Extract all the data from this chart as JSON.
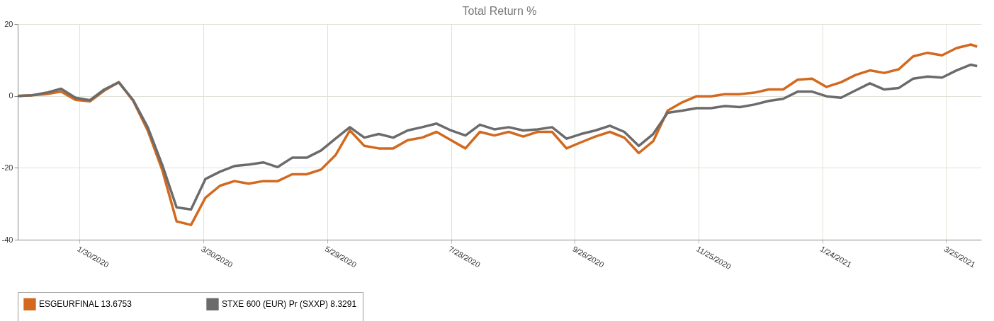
{
  "chart_data": {
    "type": "line",
    "title": "Total Return %",
    "x": [
      "2019-12-31",
      "2020-01-07",
      "2020-01-14",
      "2020-01-21",
      "2020-01-28",
      "2020-02-04",
      "2020-02-11",
      "2020-02-18",
      "2020-02-25",
      "2020-03-03",
      "2020-03-10",
      "2020-03-17",
      "2020-03-24",
      "2020-03-31",
      "2020-04-07",
      "2020-04-14",
      "2020-04-21",
      "2020-04-28",
      "2020-05-05",
      "2020-05-12",
      "2020-05-19",
      "2020-05-26",
      "2020-06-02",
      "2020-06-09",
      "2020-06-16",
      "2020-06-23",
      "2020-06-30",
      "2020-07-07",
      "2020-07-14",
      "2020-07-21",
      "2020-07-28",
      "2020-08-04",
      "2020-08-11",
      "2020-08-18",
      "2020-08-25",
      "2020-09-01",
      "2020-09-08",
      "2020-09-15",
      "2020-09-22",
      "2020-09-29",
      "2020-10-06",
      "2020-10-13",
      "2020-10-20",
      "2020-10-27",
      "2020-11-03",
      "2020-11-10",
      "2020-11-17",
      "2020-11-24",
      "2020-12-01",
      "2020-12-08",
      "2020-12-15",
      "2020-12-22",
      "2020-12-29",
      "2021-01-05",
      "2021-01-12",
      "2021-01-19",
      "2021-01-26",
      "2021-02-02",
      "2021-02-09",
      "2021-02-16",
      "2021-02-23",
      "2021-03-02",
      "2021-03-09",
      "2021-03-16",
      "2021-03-23",
      "2021-03-30",
      "2021-04-06",
      "2021-04-09"
    ],
    "series": [
      {
        "name": "ESGEURFINAL 13.6753",
        "color": "#d2691e",
        "values": [
          0,
          0.2,
          0.5,
          1.2,
          -1.1,
          -1.5,
          1.5,
          3.8,
          -1.4,
          -9.6,
          -20.5,
          -34.9,
          -35.9,
          -28.3,
          -25,
          -23.7,
          -24.4,
          -23.7,
          -23.7,
          -21.8,
          -21.8,
          -20.5,
          -16.5,
          -9.6,
          -13.9,
          -14.6,
          -14.6,
          -12.3,
          -11.6,
          -10,
          -12.3,
          -14.6,
          -10,
          -11,
          -10,
          -11.3,
          -10,
          -10,
          -14.6,
          -12.9,
          -11.3,
          -10,
          -11.6,
          -15.9,
          -12.6,
          -4.1,
          -1.8,
          -0.1,
          -0.1,
          0.5,
          0.5,
          0.9,
          1.8,
          1.8,
          4.5,
          4.8,
          2.5,
          3.8,
          5.8,
          7.1,
          6.4,
          7.4,
          11,
          12,
          11.3,
          13.3,
          14.3,
          13.7
        ]
      },
      {
        "name": "STXE 600 (EUR) Pr (SXXP) 8.3291",
        "color": "#6b6b6b",
        "values": [
          0,
          0.2,
          0.9,
          2,
          -0.5,
          -1.2,
          1.8,
          3.8,
          -1.2,
          -8.7,
          -19.1,
          -31,
          -31.6,
          -23.1,
          -21.1,
          -19.5,
          -19.1,
          -18.5,
          -19.8,
          -17.2,
          -17.2,
          -15.2,
          -11.9,
          -8.7,
          -11.6,
          -10.6,
          -11.6,
          -9.6,
          -8.7,
          -7.7,
          -9.6,
          -11,
          -8,
          -9.3,
          -8.7,
          -9.6,
          -9.3,
          -8.7,
          -11.9,
          -10.6,
          -9.6,
          -8.3,
          -10,
          -13.9,
          -10.6,
          -4.7,
          -4.1,
          -3.4,
          -3.4,
          -2.8,
          -3.1,
          -2.4,
          -1.4,
          -0.8,
          1.2,
          1.2,
          -0.1,
          -0.5,
          1.5,
          3.5,
          1.8,
          2.2,
          4.8,
          5.4,
          5.1,
          7.1,
          8.7,
          8.3
        ]
      }
    ],
    "xlim": [
      "2019-12-31",
      "2021-04-11"
    ],
    "xticks": [
      {
        "value": "2020-01-30",
        "label": "1/30/2020"
      },
      {
        "value": "2020-03-30",
        "label": "3/30/2020"
      },
      {
        "value": "2020-05-29",
        "label": "5/29/2020"
      },
      {
        "value": "2020-07-28",
        "label": "7/28/2020"
      },
      {
        "value": "2020-09-26",
        "label": "9/26/2020"
      },
      {
        "value": "2020-11-25",
        "label": "11/25/2020"
      },
      {
        "value": "2021-01-24",
        "label": "1/24/2021"
      },
      {
        "value": "2021-03-25",
        "label": "3/25/2021"
      }
    ],
    "ylim": [
      -40,
      20
    ],
    "yticks": [
      -40,
      -20,
      0,
      20
    ],
    "grid": true,
    "legend": "bottom"
  }
}
